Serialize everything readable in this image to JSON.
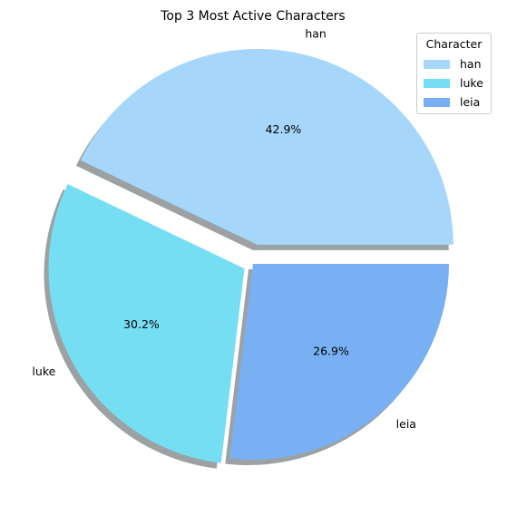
{
  "chart_data": {
    "type": "pie",
    "title": "Top 3 Most Active Characters",
    "categories": [
      "han",
      "luke",
      "leia"
    ],
    "values": [
      42.9,
      30.2,
      26.9
    ],
    "percent_labels": [
      "42.9%",
      "30.2%",
      "26.9%"
    ],
    "colors": [
      "#a6d7fa",
      "#76def3",
      "#78b0f3"
    ],
    "explode": [
      0.1,
      0.05,
      0
    ],
    "shadow": true,
    "start_angle_deg": 0,
    "direction": "counterclockwise",
    "legend": {
      "title": "Character",
      "placement": "top-right",
      "entries": [
        "han",
        "luke",
        "leia"
      ]
    }
  }
}
